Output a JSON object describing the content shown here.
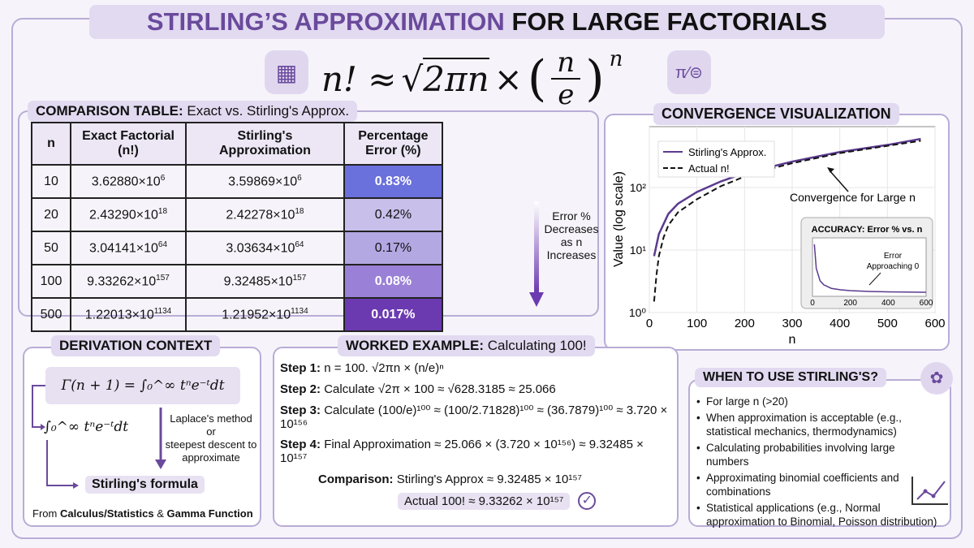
{
  "title": {
    "accent": "STIRLING’S APPROXIMATION",
    "rest": "FOR LARGE FACTORIALS"
  },
  "formula": {
    "lhs": "n! ≈",
    "sqrt": "2πn",
    "times": "×",
    "num": "n",
    "den": "e",
    "exp": "n"
  },
  "icons": {
    "left": "calculator-icon",
    "right": "pi-approx-icon",
    "brain": "brain-icon",
    "chart": "growth-chart-icon",
    "check": "check-circle-icon"
  },
  "table": {
    "title_bold": "COMPARISON TABLE:",
    "title_rest": "Exact vs. Stirling's Approx.",
    "headers": [
      "n",
      "Exact Factorial (n!)",
      "Stirling's Approximation",
      "Percentage Error (%)"
    ],
    "rows": [
      {
        "n": "10",
        "exact": "3.62880×10",
        "exact_exp": "6",
        "approx": "3.59869×10",
        "approx_exp": "6",
        "error": "0.83%",
        "color": "#6a70dc"
      },
      {
        "n": "20",
        "exact": "2.43290×10",
        "exact_exp": "18",
        "approx": "2.42278×10",
        "approx_exp": "18",
        "error": "0.42%",
        "color": "#c8c0ea"
      },
      {
        "n": "50",
        "exact": "3.04141×10",
        "exact_exp": "64",
        "approx": "3.03634×10",
        "approx_exp": "64",
        "error": "0.17%",
        "color": "#b3a8e2"
      },
      {
        "n": "100",
        "exact": "9.33262×10",
        "exact_exp": "157",
        "approx": "9.32485×10",
        "approx_exp": "157",
        "error": "0.08%",
        "color": "#9a80d6"
      },
      {
        "n": "500",
        "exact": "1.22013×10",
        "exact_exp": "1134",
        "approx": "1.21952×10",
        "approx_exp": "1134",
        "error": "0.017%",
        "color": "#6c3ab0"
      }
    ],
    "arrow_label": [
      "Error %",
      "Decreases",
      "as n",
      "Increases"
    ]
  },
  "derivation": {
    "title": "DERIVATION CONTEXT",
    "gamma": "Γ(n + 1) = ∫₀^∞ tⁿe⁻ᵗdt",
    "integral": "∫₀^∞ tⁿe⁻ᵗdt",
    "method": [
      "Laplace's method or",
      "steepest descent to",
      "approximate"
    ],
    "result": "Stirling's formula",
    "footer_pre": "From",
    "footer_bold1": "Calculus/Statistics",
    "footer_mid": "&",
    "footer_bold2": "Gamma Function"
  },
  "example": {
    "title_bold": "WORKED EXAMPLE:",
    "title_rest": "Calculating 100!",
    "steps": [
      {
        "label": "Step 1:",
        "text": "n = 100.  √2πn × (n/e)ⁿ"
      },
      {
        "label": "Step 2:",
        "text": "Calculate √2π × 100 ≈ √628.3185 ≈ 25.066"
      },
      {
        "label": "Step 3:",
        "text": "Calculate (100/e)¹⁰⁰ ≈ (100/2.71828)¹⁰⁰ ≈ (36.7879)¹⁰⁰ ≈ 3.720 × 10¹⁵⁶"
      },
      {
        "label": "Step 4:",
        "text": "Final Approximation ≈ 25.066 × (3.720 × 10¹⁵⁶) ≈ 9.32485 × 10¹⁵⁷"
      }
    ],
    "comparison_label": "Comparison:",
    "comparison_text": "Stirling's Approx ≈ 9.32485 × 10¹⁵⁷",
    "actual": "Actual 100! ≈ 9.33262 × 10¹⁵⁷"
  },
  "when": {
    "title": "WHEN TO USE STIRLING'S?",
    "items": [
      "For large n (>20)",
      "When approximation is acceptable (e.g., statistical mechanics, thermodynamics)",
      "Calculating probabilities involving large numbers",
      "Approximating binomial coefficients and combinations",
      "Statistical applications (e.g., Normal approximation to Binomial, Poisson distribution)"
    ]
  },
  "chart_data": [
    {
      "type": "line",
      "title": "CONVERGENCE VISUALIZATION",
      "xlabel": "n",
      "ylabel": "Value (log scale)",
      "xlim": [
        0,
        600
      ],
      "ylim": [
        1,
        800
      ],
      "yscale": "log",
      "grid": true,
      "legend": "top-left",
      "xticks": [
        "0",
        "100",
        "200",
        "300",
        "400",
        "500",
        "600"
      ],
      "yticks": [
        "10⁰",
        "10¹",
        "10²"
      ],
      "annotation": "Convergence for Large n",
      "series": [
        {
          "name": "Stirling's Approx.",
          "color": "#5b3a8e",
          "style": "solid",
          "x": [
            10,
            20,
            40,
            60,
            100,
            150,
            200,
            250,
            300,
            400,
            500,
            570
          ],
          "y": [
            8,
            18,
            38,
            55,
            85,
            125,
            170,
            210,
            260,
            370,
            480,
            600
          ]
        },
        {
          "name": "Actual n!",
          "color": "#111111",
          "style": "dashed",
          "x": [
            10,
            15,
            20,
            30,
            40,
            60,
            100,
            150,
            200,
            250,
            300,
            400,
            500,
            570
          ],
          "y": [
            1.5,
            4,
            8,
            16,
            25,
            40,
            65,
            105,
            150,
            195,
            245,
            355,
            465,
            560
          ]
        }
      ]
    },
    {
      "type": "line",
      "title": "ACCURACY: Error % vs. n",
      "xlim": [
        0,
        600
      ],
      "xticks": [
        "0",
        "200",
        "400",
        "600"
      ],
      "annotation": [
        "Error",
        "Approaching 0"
      ],
      "series": [
        {
          "color": "#5b3a8e",
          "x": [
            10,
            20,
            40,
            60,
            100,
            150,
            200,
            300,
            400,
            500,
            600
          ],
          "y": [
            0.83,
            0.42,
            0.21,
            0.14,
            0.08,
            0.056,
            0.042,
            0.028,
            0.021,
            0.017,
            0.014
          ]
        }
      ]
    }
  ]
}
